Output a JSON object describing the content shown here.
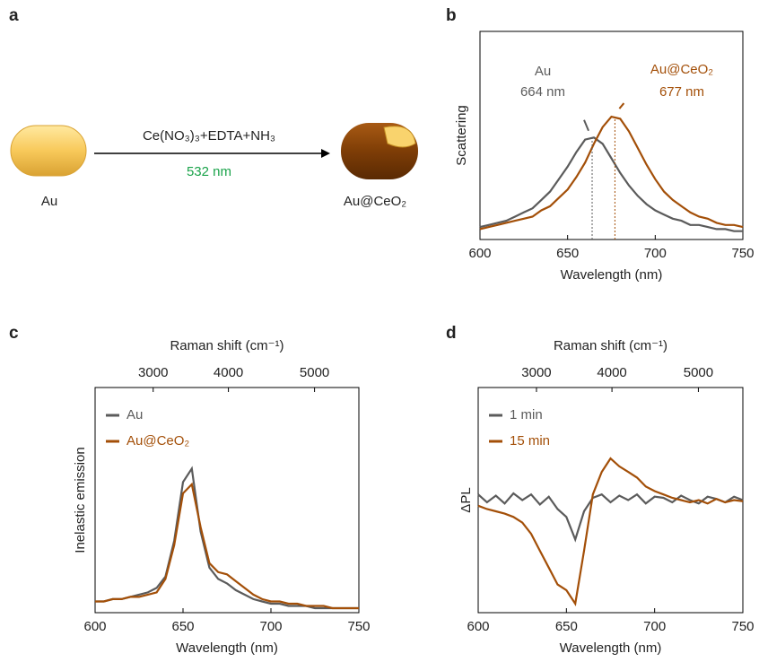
{
  "panel_labels": [
    "a",
    "b",
    "c",
    "d"
  ],
  "scheme": {
    "reagents": "Ce(NO₃)₃+EDTA+NH₃",
    "laser": "532 nm",
    "start": "Au",
    "product": "Au@CeO₂"
  },
  "chart_data": [
    {
      "type": "line",
      "xlabel": "Wavelength (nm)",
      "ylabel": "Scattering",
      "x": [
        600,
        605,
        610,
        615,
        620,
        625,
        630,
        635,
        640,
        645,
        650,
        655,
        660,
        665,
        670,
        675,
        680,
        685,
        690,
        695,
        700,
        705,
        710,
        715,
        720,
        725,
        730,
        735,
        740,
        745,
        750
      ],
      "xlim": [
        600,
        750
      ],
      "xticks": [
        600,
        650,
        700,
        750
      ],
      "ylim": [
        0,
        1
      ],
      "series": [
        {
          "name": "Au",
          "color": "#5b5b5b",
          "values": [
            0.06,
            0.07,
            0.08,
            0.09,
            0.11,
            0.13,
            0.15,
            0.19,
            0.23,
            0.29,
            0.35,
            0.42,
            0.48,
            0.49,
            0.46,
            0.39,
            0.32,
            0.26,
            0.21,
            0.17,
            0.14,
            0.12,
            0.1,
            0.09,
            0.07,
            0.07,
            0.06,
            0.05,
            0.05,
            0.04,
            0.04
          ]
        },
        {
          "name": "Au@CeO₂",
          "color": "#a34f08",
          "values": [
            0.05,
            0.06,
            0.07,
            0.08,
            0.09,
            0.1,
            0.11,
            0.14,
            0.16,
            0.2,
            0.24,
            0.3,
            0.37,
            0.46,
            0.54,
            0.59,
            0.58,
            0.52,
            0.44,
            0.36,
            0.29,
            0.23,
            0.19,
            0.16,
            0.13,
            0.11,
            0.1,
            0.08,
            0.07,
            0.07,
            0.06
          ]
        }
      ],
      "peaks": [
        {
          "label": "664 nm",
          "x": 664
        },
        {
          "label": "677 nm",
          "x": 677
        }
      ]
    },
    {
      "type": "line",
      "xlabel": "Wavelength (nm)",
      "ylabel": "Inelastic emission",
      "x2label": "Raman shift (cm⁻¹)",
      "x": [
        600,
        605,
        610,
        615,
        620,
        625,
        630,
        635,
        640,
        645,
        650,
        655,
        660,
        665,
        670,
        675,
        680,
        685,
        690,
        695,
        700,
        705,
        710,
        715,
        720,
        725,
        730,
        735,
        740,
        745,
        750
      ],
      "xlim": [
        600,
        750
      ],
      "xticks": [
        600,
        650,
        700,
        750
      ],
      "x2ticks": [
        3000,
        4000,
        5000
      ],
      "ylim": [
        0,
        1
      ],
      "legend": "upper left",
      "series": [
        {
          "name": "Au",
          "color": "#5b5b5b",
          "values": [
            0.05,
            0.05,
            0.06,
            0.06,
            0.07,
            0.08,
            0.09,
            0.11,
            0.16,
            0.32,
            0.58,
            0.64,
            0.36,
            0.2,
            0.15,
            0.13,
            0.1,
            0.08,
            0.06,
            0.05,
            0.04,
            0.04,
            0.03,
            0.03,
            0.03,
            0.02,
            0.02,
            0.02,
            0.02,
            0.02,
            0.02
          ]
        },
        {
          "name": "Au@CeO₂",
          "color": "#a34f08",
          "values": [
            0.05,
            0.05,
            0.06,
            0.06,
            0.07,
            0.07,
            0.08,
            0.09,
            0.15,
            0.3,
            0.53,
            0.57,
            0.38,
            0.22,
            0.18,
            0.17,
            0.14,
            0.11,
            0.08,
            0.06,
            0.05,
            0.05,
            0.04,
            0.04,
            0.03,
            0.03,
            0.03,
            0.02,
            0.02,
            0.02,
            0.02
          ]
        }
      ]
    },
    {
      "type": "line",
      "xlabel": "Wavelength (nm)",
      "ylabel": "ΔPL",
      "x2label": "Raman shift (cm⁻¹)",
      "x": [
        600,
        605,
        610,
        615,
        620,
        625,
        630,
        635,
        640,
        645,
        650,
        655,
        660,
        665,
        670,
        675,
        680,
        685,
        690,
        695,
        700,
        705,
        710,
        715,
        720,
        725,
        730,
        735,
        740,
        745,
        750
      ],
      "xlim": [
        600,
        750
      ],
      "xticks": [
        600,
        650,
        700,
        750
      ],
      "x2ticks": [
        3000,
        4000,
        5000
      ],
      "ylim": [
        -1,
        1
      ],
      "legend": "upper left",
      "series": [
        {
          "name": "1 min",
          "color": "#5b5b5b",
          "values": [
            0.05,
            -0.02,
            0.04,
            -0.03,
            0.06,
            0.0,
            0.05,
            -0.04,
            0.03,
            -0.08,
            -0.15,
            -0.35,
            -0.1,
            0.02,
            0.05,
            -0.02,
            0.04,
            0.0,
            0.05,
            -0.03,
            0.03,
            0.02,
            -0.02,
            0.04,
            0.0,
            -0.03,
            0.03,
            0.01,
            -0.02,
            0.03,
            0.0
          ]
        },
        {
          "name": "15 min",
          "color": "#a34f08",
          "values": [
            -0.05,
            -0.08,
            -0.1,
            -0.12,
            -0.15,
            -0.2,
            -0.3,
            -0.45,
            -0.6,
            -0.75,
            -0.8,
            -0.92,
            -0.45,
            0.05,
            0.25,
            0.37,
            0.3,
            0.25,
            0.2,
            0.12,
            0.08,
            0.05,
            0.02,
            0.0,
            -0.02,
            0.0,
            -0.03,
            0.01,
            -0.02,
            0.0,
            -0.01
          ]
        }
      ]
    }
  ]
}
